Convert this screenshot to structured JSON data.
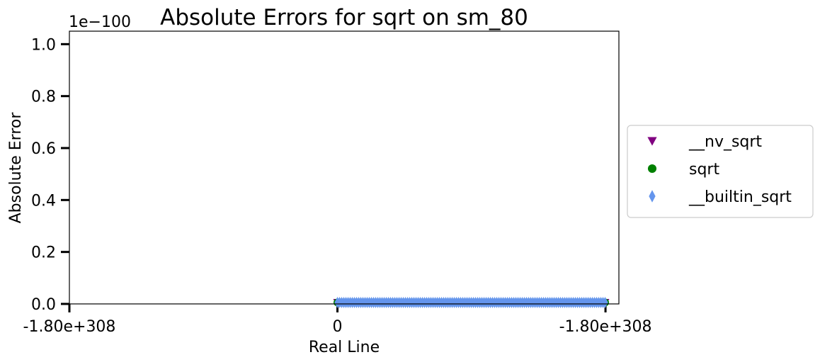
{
  "chart_data": {
    "type": "scatter",
    "title": "Absolute Errors for sqrt on sm_80",
    "xlabel": "Real Line",
    "ylabel": "Absolute Error",
    "y_offset_label": "1e−100",
    "x_ticks": [
      {
        "pos": -1,
        "label": "-1.80e+308"
      },
      {
        "pos": 0,
        "label": "0"
      },
      {
        "pos": 1,
        "label": "-1.80e+308"
      }
    ],
    "y_ticks": [
      {
        "value": 0.0,
        "label": "0.0"
      },
      {
        "value": 0.2,
        "label": "0.2"
      },
      {
        "value": 0.4,
        "label": "0.4"
      },
      {
        "value": 0.6,
        "label": "0.6"
      },
      {
        "value": 0.8,
        "label": "0.8"
      },
      {
        "value": 1.0,
        "label": "1.0"
      }
    ],
    "xlim": [
      -1,
      1.05
    ],
    "ylim": [
      0,
      1.05
    ],
    "legend_placement": "outside-right",
    "series": [
      {
        "name": "__nv_sqrt",
        "marker": "triangle-down",
        "color": "#800080",
        "x_range": [
          0,
          1
        ],
        "y": 0
      },
      {
        "name": "sqrt",
        "marker": "circle",
        "color": "#008000",
        "x_range": [
          0,
          1
        ],
        "y": 0
      },
      {
        "name": "__builtin_sqrt",
        "marker": "thin-diamond",
        "color": "#6495ED",
        "x_range": [
          0,
          1
        ],
        "y": 0
      }
    ]
  }
}
